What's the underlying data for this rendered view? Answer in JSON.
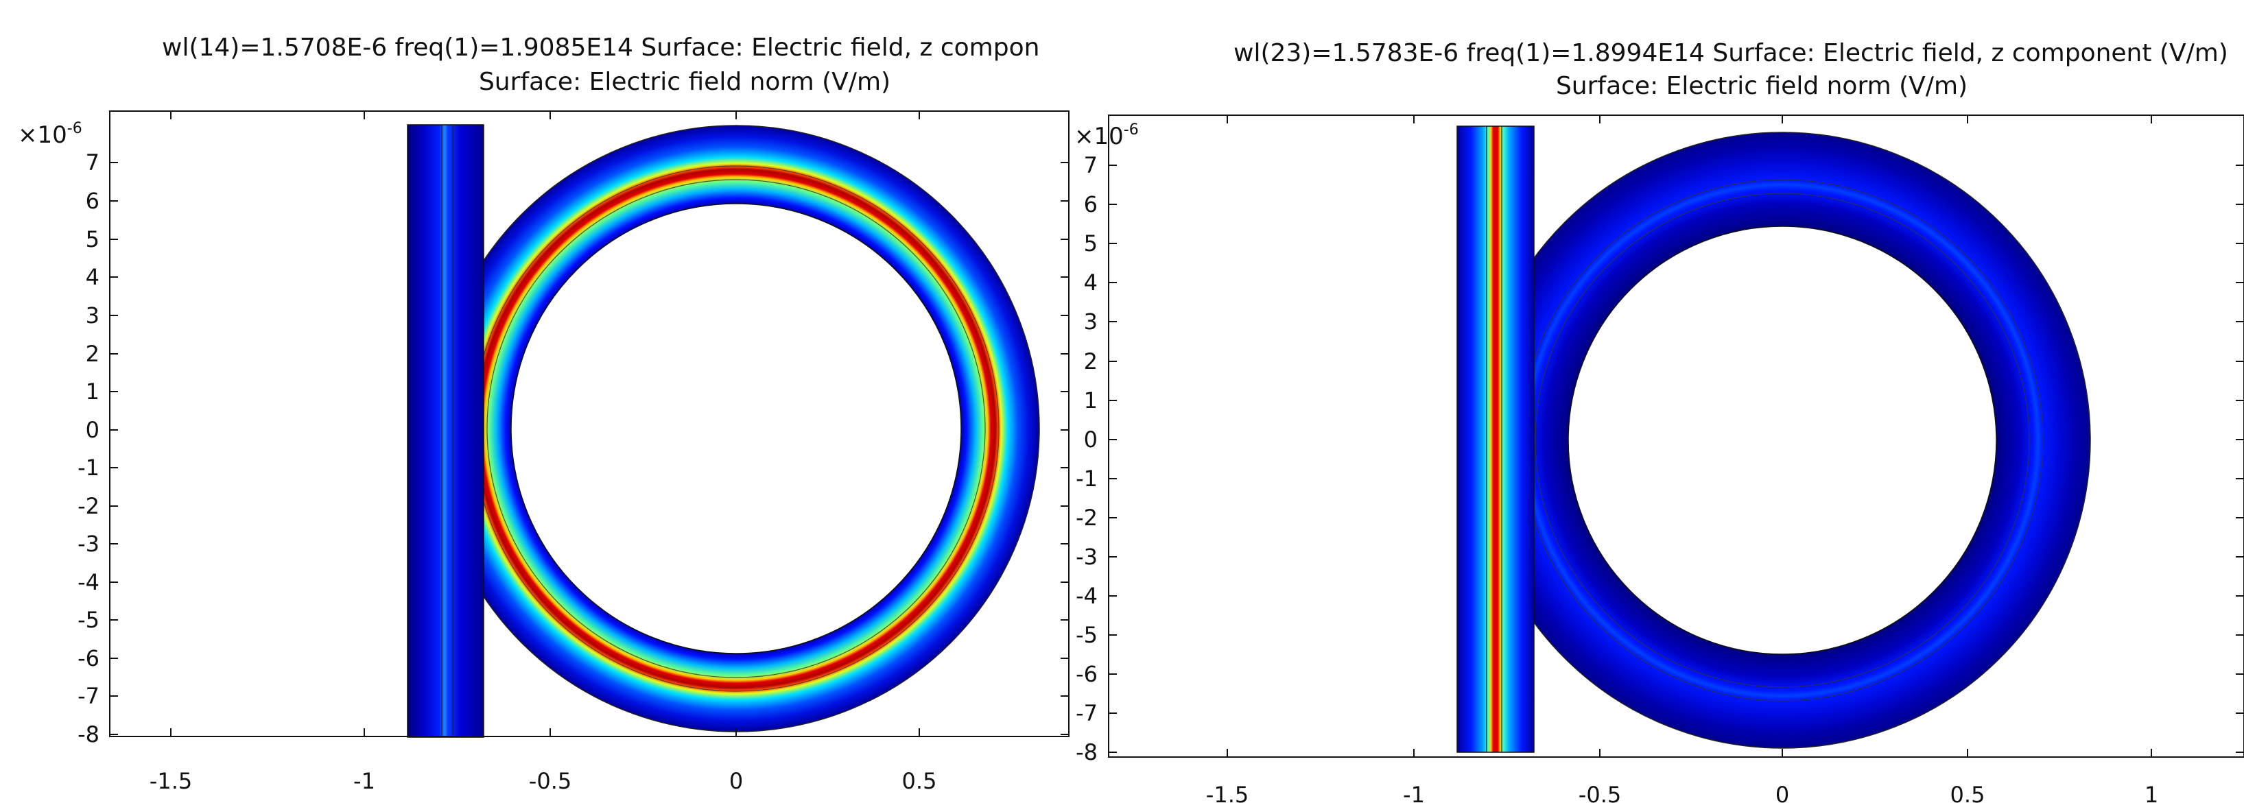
{
  "panels": [
    {
      "title_line1": "wl(14)=1.5708E-6 freq(1)=1.9085E14   Surface: Electric field, z compon",
      "title_line2": "Surface: Electric field norm (V/m)",
      "axis_multiplier_base": "×10",
      "axis_multiplier_exp": "-6",
      "x_ticks": [
        "-1.5",
        "-1",
        "-0.5",
        "0",
        "0.5"
      ],
      "y_ticks": [
        "7",
        "6",
        "5",
        "4",
        "3",
        "2",
        "1",
        "0",
        "-1",
        "-2",
        "-3",
        "-4",
        "-5",
        "-6",
        "-7",
        "-8"
      ],
      "field_state": "ring-resonant"
    },
    {
      "title_line1": "wl(23)=1.5783E-6 freq(1)=1.8994E14   Surface: Electric field, z component (V/m)",
      "title_line2": "Surface: Electric field norm (V/m)",
      "axis_multiplier_base": "×10",
      "axis_multiplier_exp": "-6",
      "x_ticks": [
        "-1.5",
        "-1",
        "-0.5",
        "0",
        "0.5",
        "1"
      ],
      "y_ticks": [
        "7",
        "6",
        "5",
        "4",
        "3",
        "2",
        "1",
        "0",
        "-1",
        "-2",
        "-3",
        "-4",
        "-5",
        "-6",
        "-7",
        "-8"
      ],
      "field_state": "waveguide-through"
    }
  ],
  "colors": {
    "jet_dark_blue": "#00008f",
    "jet_blue": "#0000ff",
    "jet_cyan": "#00ffff",
    "jet_yellow": "#ffff00",
    "jet_red": "#ff0000",
    "jet_dark_red": "#800000",
    "axis": "#111111"
  }
}
